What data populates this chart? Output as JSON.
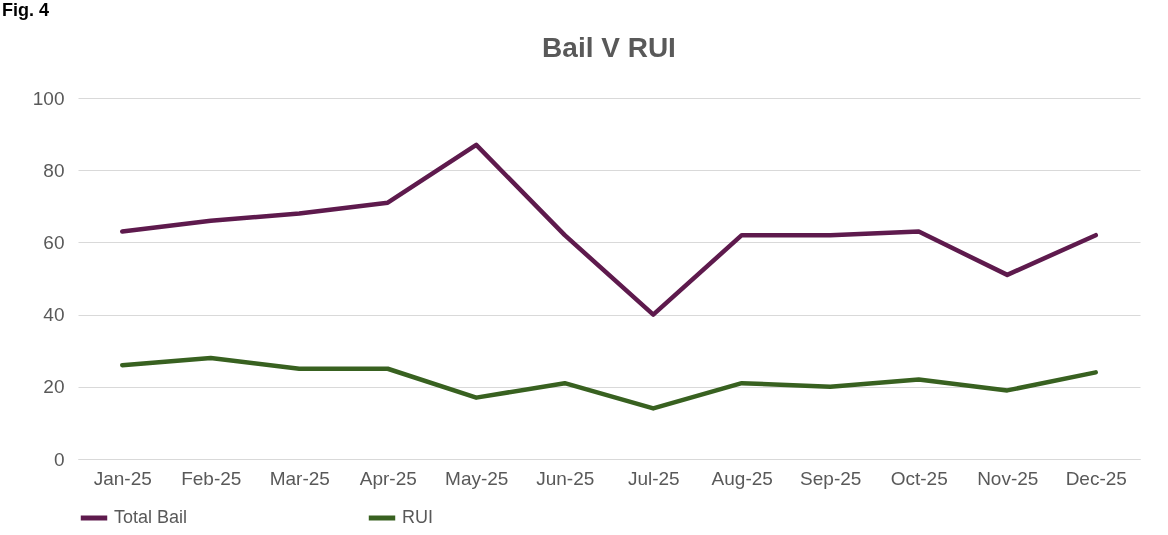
{
  "chart_data": {
    "type": "line",
    "title": "Bail V RUI",
    "annotations": [
      "Fig. 4"
    ],
    "categories": [
      "Jan-25",
      "Feb-25",
      "Mar-25",
      "Apr-25",
      "May-25",
      "Jun-25",
      "Jul-25",
      "Aug-25",
      "Sep-25",
      "Oct-25",
      "Nov-25",
      "Dec-25"
    ],
    "series": [
      {
        "name": "Total Bail",
        "color": "#5e1a4d",
        "values": [
          63,
          66,
          68,
          71,
          87,
          62,
          40,
          62,
          62,
          63,
          51,
          62
        ]
      },
      {
        "name": "RUI",
        "color": "#386120",
        "values": [
          26,
          28,
          25,
          25,
          17,
          21,
          14,
          21,
          20,
          22,
          19,
          24
        ]
      }
    ],
    "ylim": [
      0,
      100
    ],
    "yticks": [
      0,
      20,
      40,
      60,
      80,
      100
    ],
    "grid": "y",
    "legend": "bottom",
    "marker": "none",
    "line_style": "solid"
  }
}
